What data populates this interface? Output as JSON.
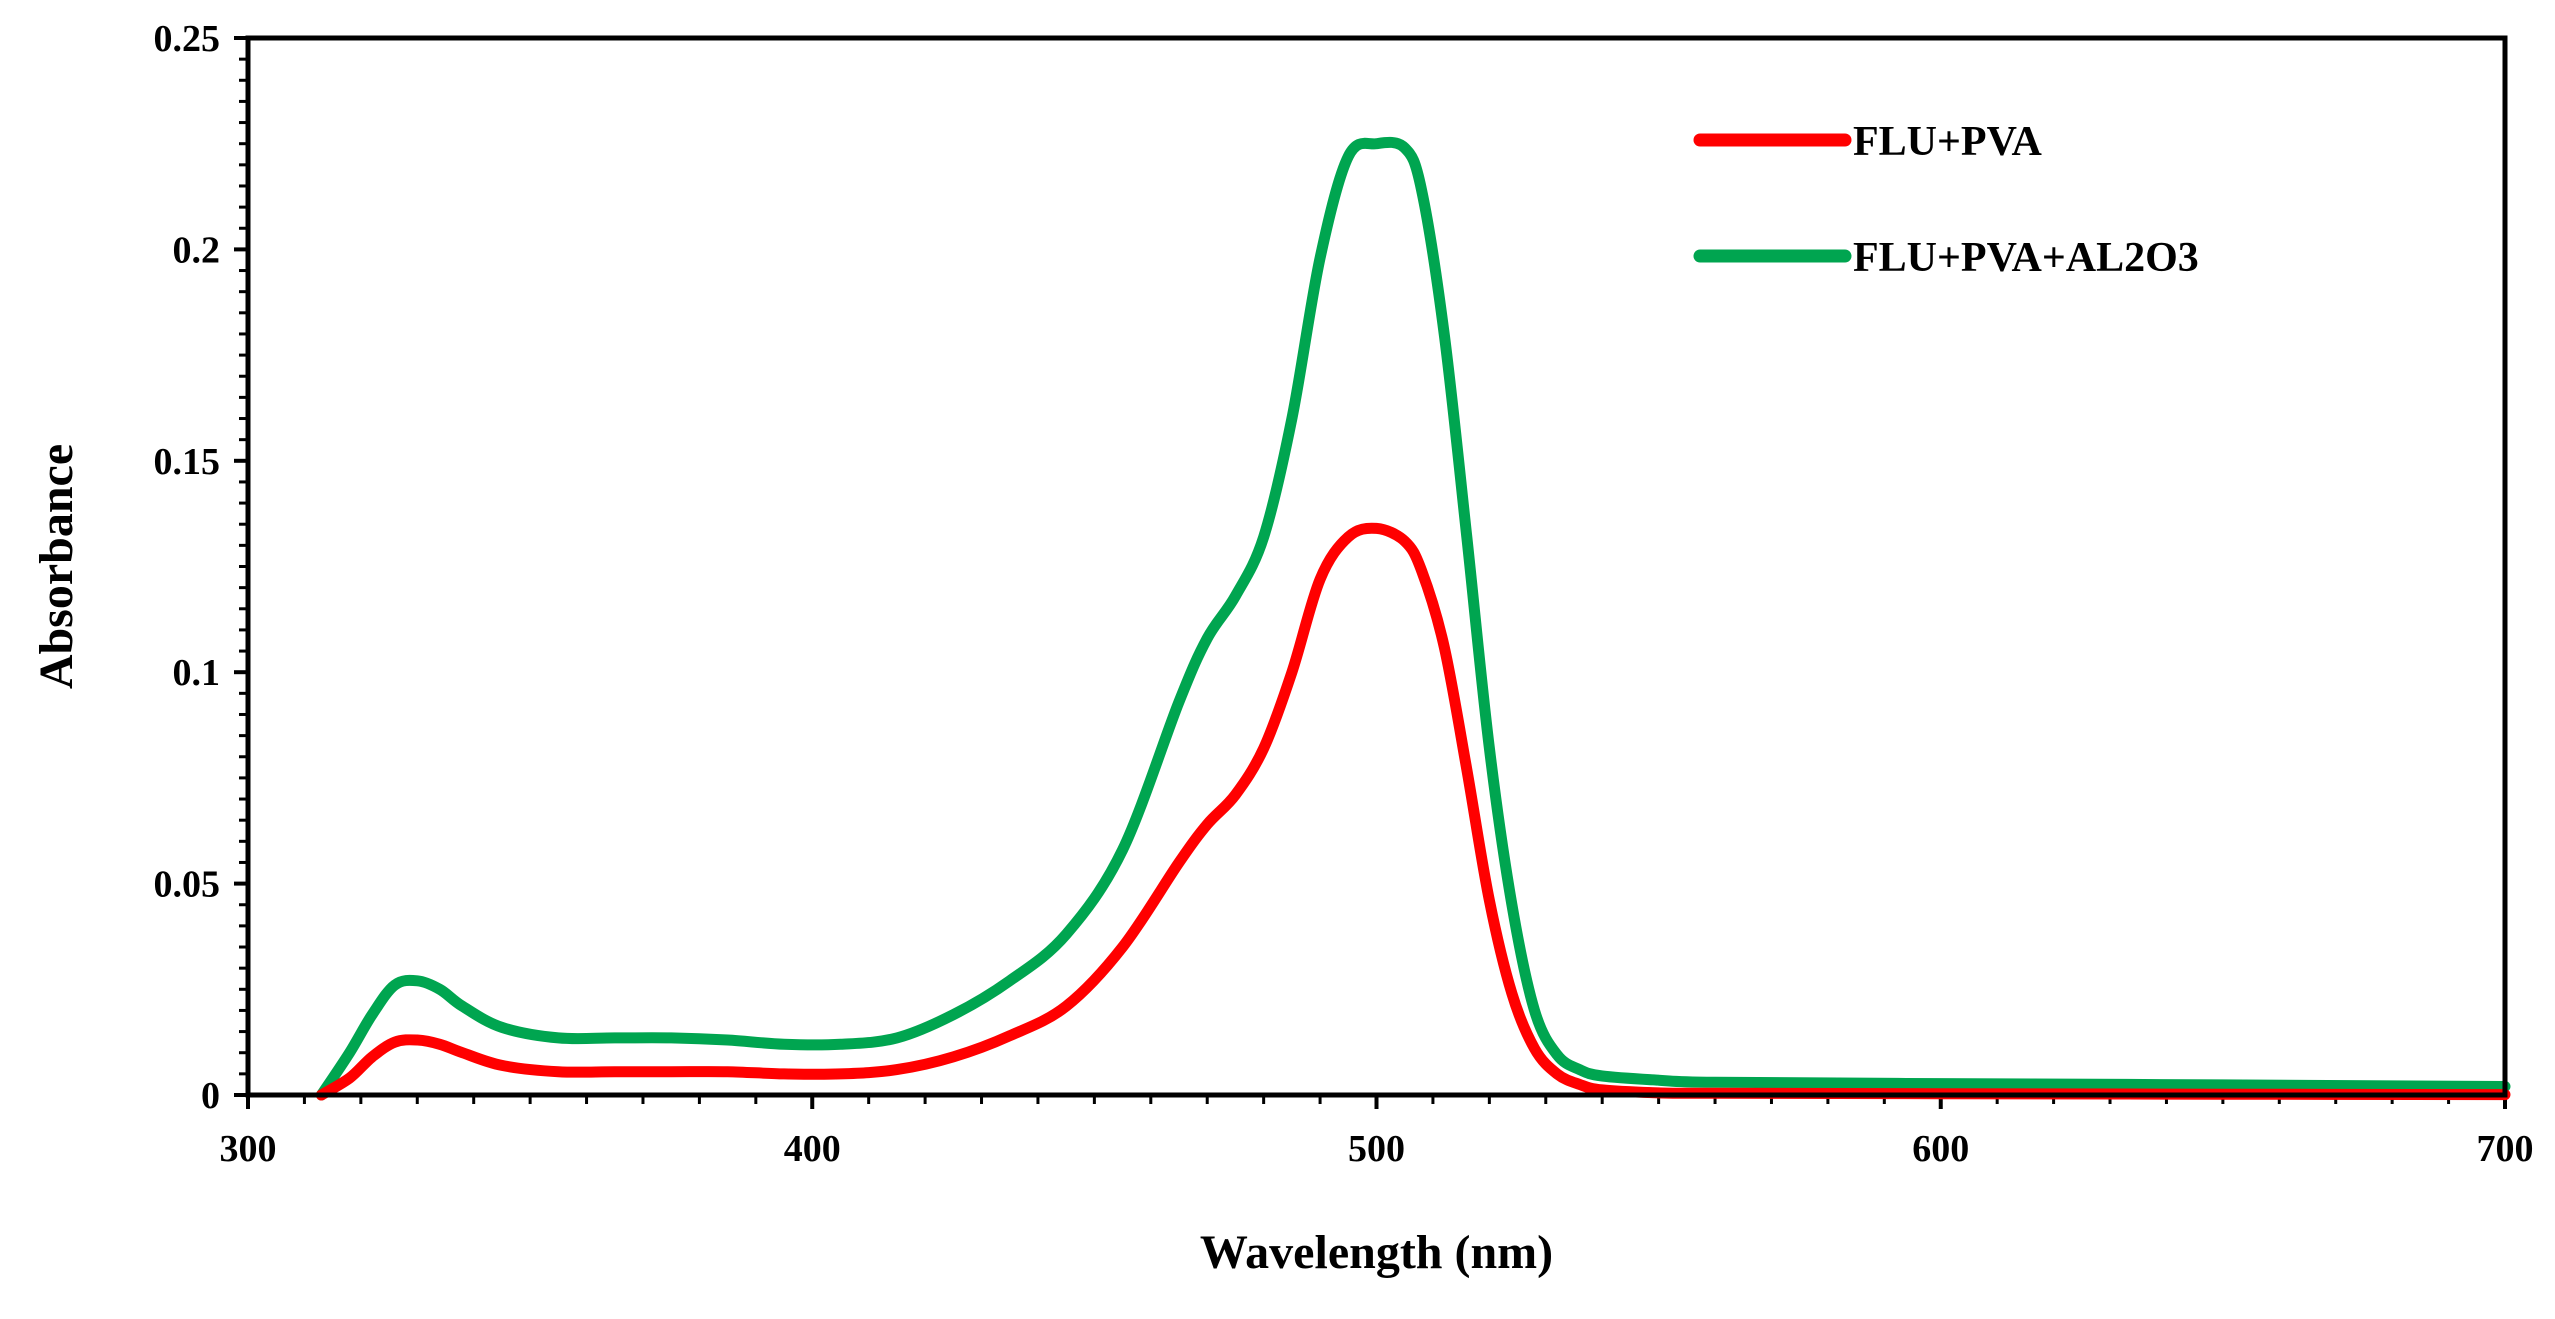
{
  "chart_data": {
    "type": "line",
    "title": "",
    "xlabel": "Wavelength (nm)",
    "ylabel": "Absorbance",
    "xlim": [
      300,
      700
    ],
    "ylim": [
      0,
      0.25
    ],
    "xticks": [
      300,
      400,
      500,
      600,
      700
    ],
    "xtick_labels": [
      "300",
      "400",
      "500",
      "600",
      "700"
    ],
    "yticks": [
      0,
      0.05,
      0.1,
      0.15,
      0.2,
      0.25
    ],
    "ytick_labels": [
      "0",
      "0.05",
      "0.1",
      "0.15",
      "0.2",
      "0.25"
    ],
    "grid": false,
    "legend_position": "top-right",
    "series": [
      {
        "name": "FLU+PVA",
        "color": "#ff0000",
        "x": [
          313,
          318,
          322,
          326,
          330,
          334,
          338,
          345,
          355,
          365,
          375,
          385,
          395,
          405,
          415,
          425,
          435,
          445,
          455,
          465,
          470,
          475,
          480,
          485,
          490,
          495,
          500,
          505,
          508,
          512,
          516,
          520,
          524,
          528,
          532,
          536,
          540,
          550,
          560,
          600,
          650,
          700
        ],
        "y": [
          0,
          0.004,
          0.009,
          0.0125,
          0.013,
          0.012,
          0.01,
          0.007,
          0.0055,
          0.0055,
          0.0055,
          0.0055,
          0.005,
          0.005,
          0.006,
          0.009,
          0.014,
          0.021,
          0.035,
          0.055,
          0.064,
          0.071,
          0.082,
          0.1,
          0.122,
          0.132,
          0.134,
          0.131,
          0.124,
          0.106,
          0.077,
          0.046,
          0.024,
          0.011,
          0.005,
          0.0025,
          0.0012,
          0.0005,
          0.0004,
          0.0003,
          0.0002,
          0.0001
        ]
      },
      {
        "name": "FLU+PVA+AL2O3",
        "color": "#00a550",
        "x": [
          313,
          318,
          322,
          326,
          330,
          334,
          338,
          345,
          355,
          365,
          375,
          385,
          395,
          405,
          415,
          425,
          435,
          445,
          455,
          465,
          470,
          475,
          480,
          485,
          490,
          495,
          500,
          505,
          508,
          512,
          516,
          520,
          524,
          528,
          532,
          536,
          540,
          550,
          560,
          600,
          650,
          700
        ],
        "y": [
          0,
          0.01,
          0.019,
          0.026,
          0.027,
          0.025,
          0.021,
          0.016,
          0.0135,
          0.0135,
          0.0135,
          0.013,
          0.012,
          0.012,
          0.0135,
          0.019,
          0.027,
          0.038,
          0.058,
          0.093,
          0.108,
          0.118,
          0.132,
          0.16,
          0.198,
          0.222,
          0.225,
          0.224,
          0.214,
          0.18,
          0.132,
          0.082,
          0.045,
          0.02,
          0.0095,
          0.006,
          0.0045,
          0.0035,
          0.003,
          0.0027,
          0.0024,
          0.002
        ]
      }
    ]
  }
}
